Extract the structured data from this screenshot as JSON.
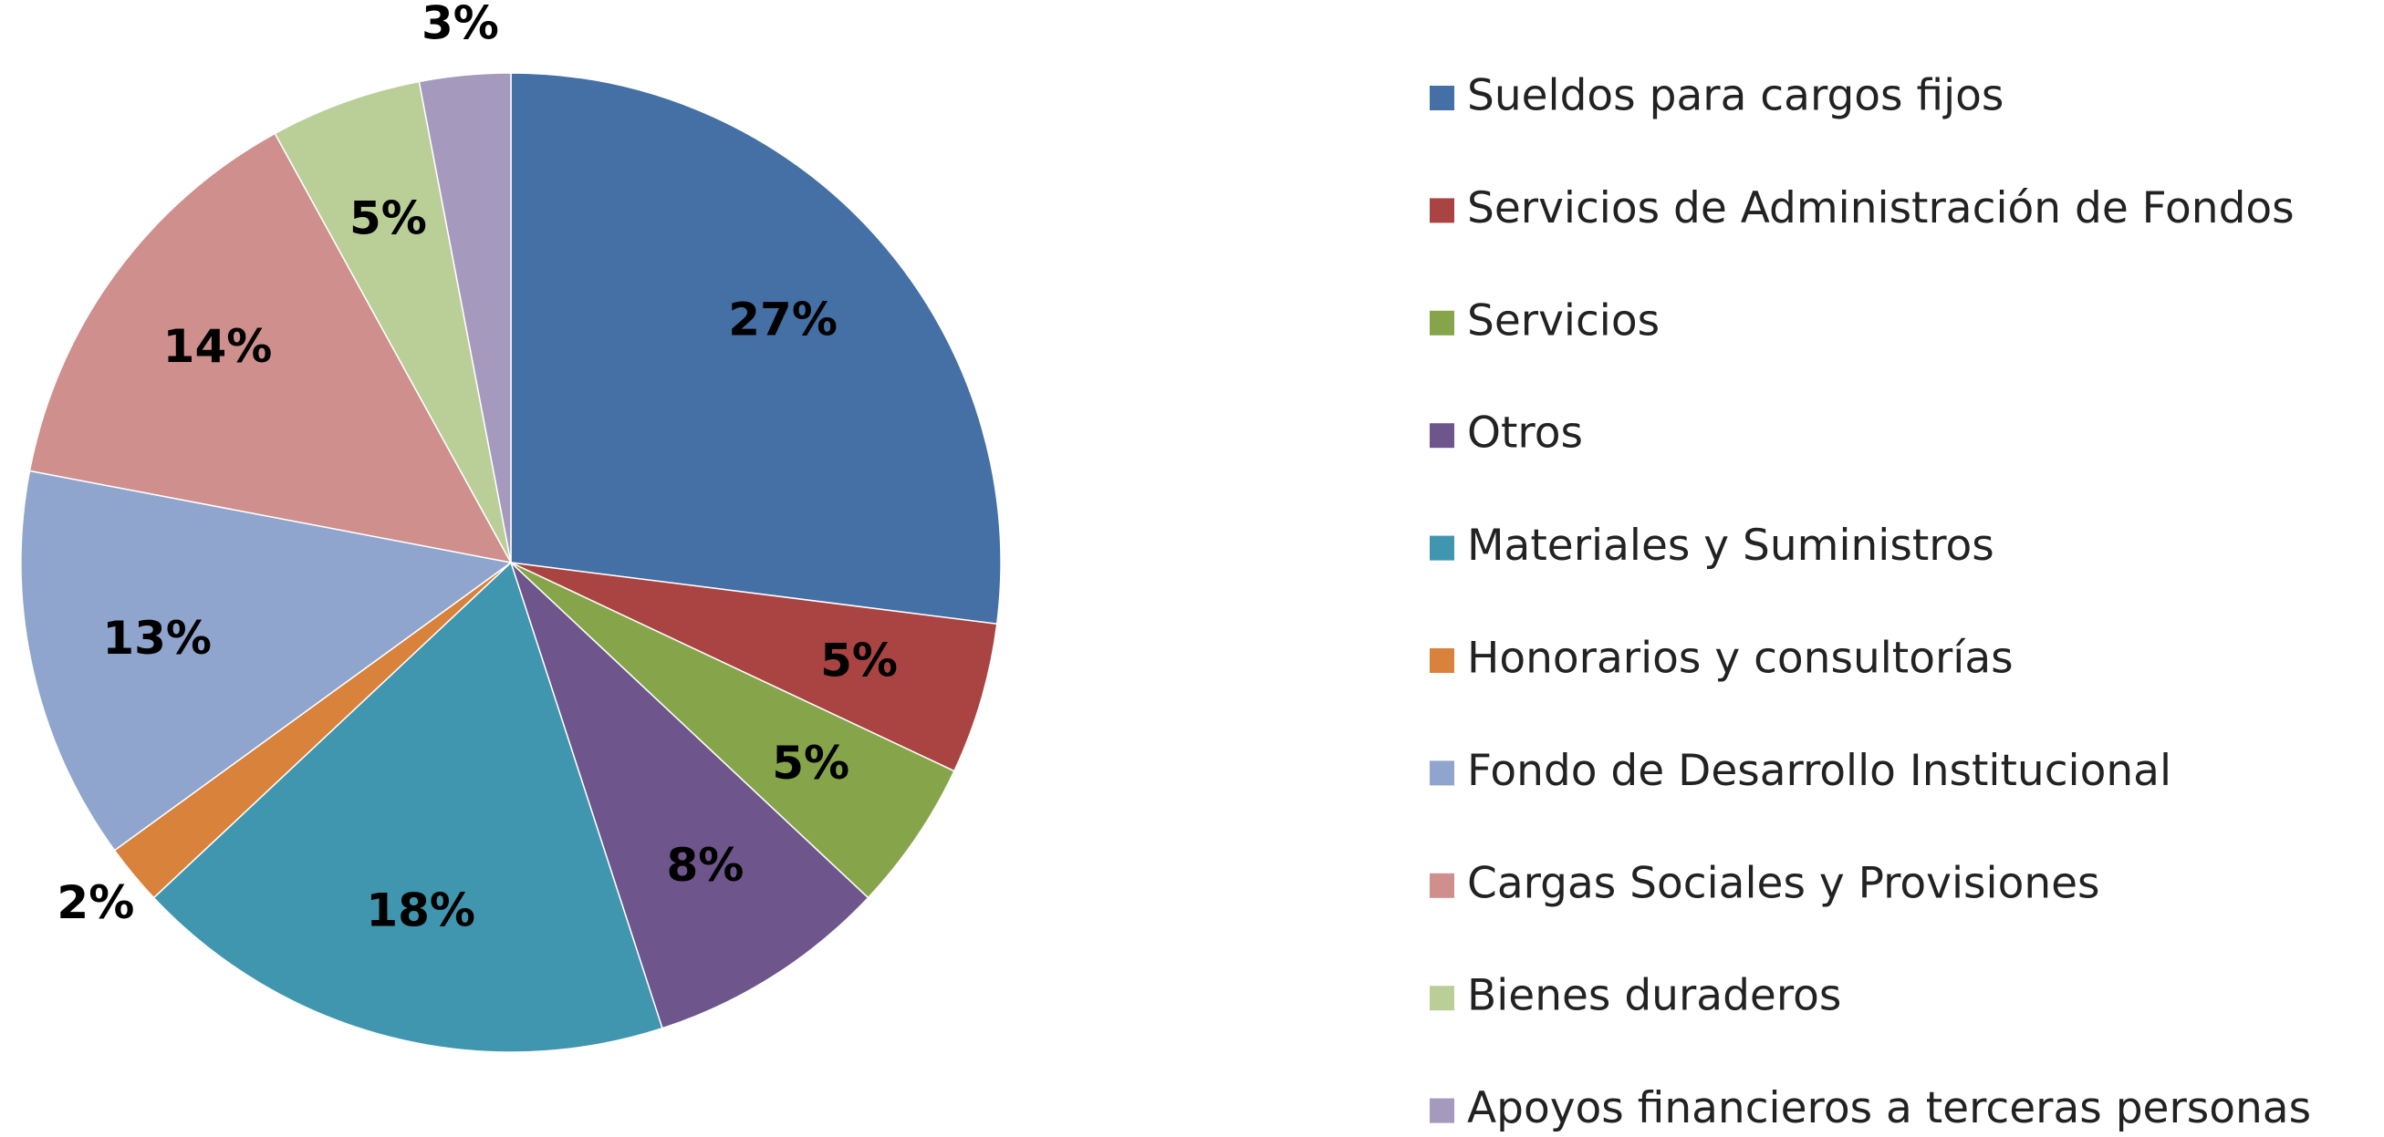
{
  "chart_data": {
    "type": "pie",
    "categories": [
      "Sueldos para cargos fijos",
      "Servicios de Administración de Fondos",
      "Servicios",
      "Otros",
      "Materiales y Suministros",
      "Honorarios y consultorías",
      "Fondo de Desarrollo Institucional",
      "Cargas Sociales y Provisiones",
      "Bienes duraderos",
      "Apoyos financieros a terceras personas"
    ],
    "values": [
      27,
      5,
      5,
      8,
      18,
      2,
      13,
      14,
      5,
      3
    ],
    "value_labels": [
      "27%",
      "5%",
      "5%",
      "8%",
      "18%",
      "2%",
      "13%",
      "14%",
      "5%",
      "3%"
    ],
    "colors": [
      "#4470a6",
      "#a94442",
      "#86a54a",
      "#6e558c",
      "#3f96ae",
      "#d8823b",
      "#8fa5cd",
      "#cf8f8d",
      "#b9cf97",
      "#a59abd"
    ],
    "legend": "right"
  }
}
